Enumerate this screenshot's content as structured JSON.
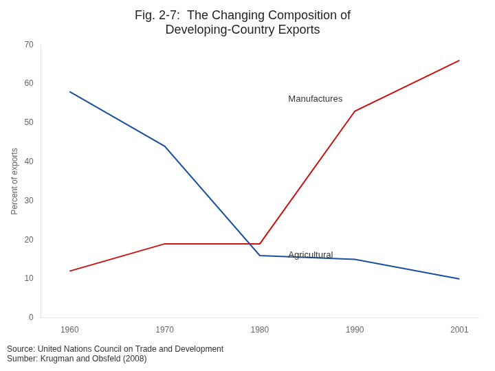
{
  "chart_data": {
    "type": "line",
    "title": [
      "Fig. 2-7:  The Changing Composition of",
      "Developing-Country Exports"
    ],
    "ylabel": "Percent of exports",
    "x": [
      1960,
      1970,
      1980,
      1990,
      2001
    ],
    "series": [
      {
        "name": "Agricultural",
        "color": "#1a4fa0",
        "values": [
          58,
          44,
          16,
          15,
          10
        ]
      },
      {
        "name": "Manufactures",
        "color": "#cc1111",
        "values": [
          12,
          19,
          19,
          53,
          66
        ]
      }
    ],
    "xlim": [
      1957,
      2003
    ],
    "xticks": [
      1960,
      1970,
      1980,
      1990,
      2001
    ],
    "ylim": [
      0,
      70
    ],
    "yticks": [
      0,
      10,
      20,
      30,
      40,
      50,
      60,
      70
    ],
    "grid": false,
    "annotations": [
      {
        "text": "Manufactures",
        "x": 1983,
        "y": 56
      },
      {
        "text": "Agricultural",
        "x": 1983,
        "y": 16
      }
    ],
    "footnotes": [
      "Source: United Nations Council on Trade and Development",
      "Sumber: Krugman and Obsfeld (2008)"
    ]
  }
}
